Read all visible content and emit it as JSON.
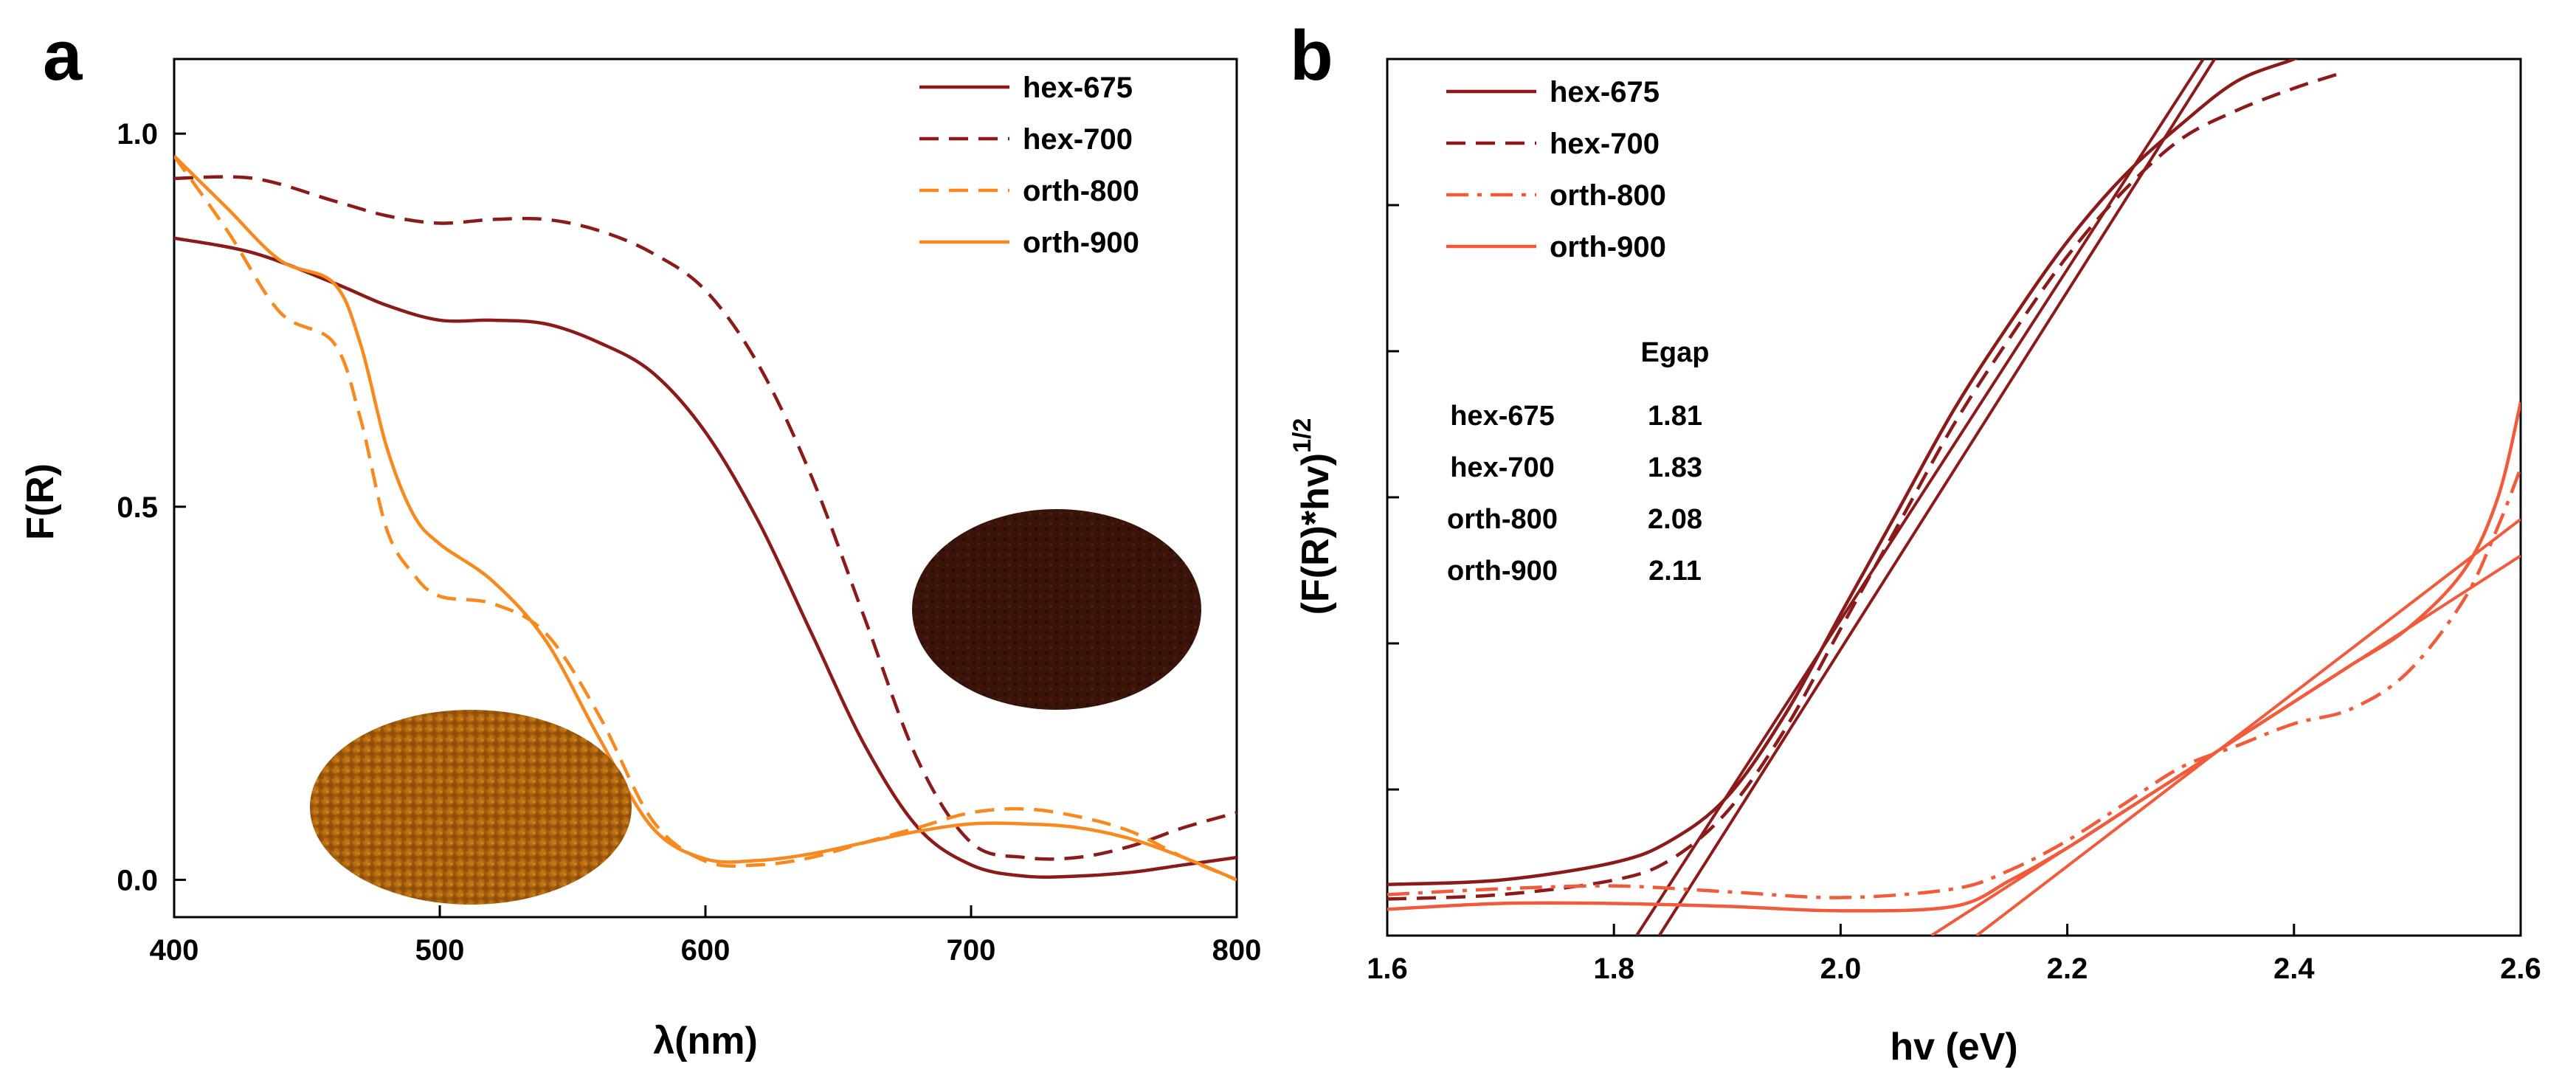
{
  "colors": {
    "hex": "#8b1a1a",
    "orth_a": "#f7891f",
    "orth_b": "#f25a3c"
  },
  "chart_data": [
    {
      "type": "line",
      "panel": "a",
      "xlabel": "λ(nm)",
      "ylabel": "F(R)",
      "xlim": [
        400,
        800
      ],
      "ylim": [
        -0.05,
        1.1
      ],
      "xticks": [
        400,
        500,
        600,
        700,
        800
      ],
      "xtick_labels": [
        "400",
        "500",
        "600",
        "700",
        "800"
      ],
      "yticks": [
        0.0,
        0.5,
        1.0
      ],
      "ytick_labels": [
        "0.0",
        "0.5",
        "1.0"
      ],
      "legend_position": "top-right",
      "series": [
        {
          "name": "hex-675",
          "style": "solid",
          "color": "#8b1a1a",
          "x": [
            400,
            430,
            460,
            480,
            500,
            520,
            540,
            560,
            580,
            600,
            620,
            640,
            660,
            680,
            700,
            720,
            740,
            760,
            780,
            800
          ],
          "y": [
            0.86,
            0.84,
            0.8,
            0.77,
            0.75,
            0.75,
            0.745,
            0.72,
            0.68,
            0.6,
            0.48,
            0.33,
            0.18,
            0.07,
            0.02,
            0.005,
            0.005,
            0.01,
            0.02,
            0.03
          ]
        },
        {
          "name": "hex-700",
          "style": "dashed",
          "color": "#8b1a1a",
          "x": [
            400,
            430,
            460,
            480,
            500,
            520,
            540,
            560,
            580,
            600,
            620,
            640,
            660,
            680,
            700,
            720,
            740,
            760,
            780,
            800
          ],
          "y": [
            0.94,
            0.94,
            0.91,
            0.89,
            0.88,
            0.885,
            0.885,
            0.87,
            0.84,
            0.79,
            0.69,
            0.54,
            0.35,
            0.16,
            0.05,
            0.03,
            0.03,
            0.045,
            0.07,
            0.09
          ]
        },
        {
          "name": "orth-800",
          "style": "dashed",
          "color": "#f7891f",
          "x": [
            400,
            420,
            440,
            460,
            470,
            480,
            490,
            500,
            520,
            540,
            560,
            580,
            600,
            620,
            640,
            660,
            680,
            700,
            720,
            740,
            760,
            780,
            800
          ],
          "y": [
            0.97,
            0.87,
            0.76,
            0.72,
            0.62,
            0.47,
            0.41,
            0.38,
            0.37,
            0.33,
            0.22,
            0.08,
            0.025,
            0.02,
            0.03,
            0.05,
            0.07,
            0.09,
            0.095,
            0.085,
            0.065,
            0.03,
            0.0
          ]
        },
        {
          "name": "orth-900",
          "style": "solid",
          "color": "#f7891f",
          "x": [
            400,
            420,
            440,
            460,
            470,
            480,
            490,
            500,
            520,
            540,
            560,
            580,
            600,
            620,
            640,
            660,
            680,
            700,
            720,
            740,
            760,
            780,
            800
          ],
          "y": [
            0.97,
            0.9,
            0.83,
            0.8,
            0.72,
            0.58,
            0.49,
            0.45,
            0.4,
            0.32,
            0.19,
            0.07,
            0.028,
            0.026,
            0.035,
            0.05,
            0.065,
            0.075,
            0.075,
            0.07,
            0.055,
            0.03,
            0.0
          ]
        }
      ]
    },
    {
      "type": "line",
      "panel": "b",
      "xlabel": "hv (eV)",
      "ylabel": "(F(R)*hv)",
      "ylabel_superscript": "1/2",
      "xlim": [
        1.6,
        2.6
      ],
      "ylim": [
        0,
        6
      ],
      "xticks": [
        1.6,
        1.8,
        2.0,
        2.2,
        2.4,
        2.6
      ],
      "xtick_labels": [
        "1.6",
        "1.8",
        "2.0",
        "2.2",
        "2.4",
        "2.6"
      ],
      "yticks": [
        1,
        2,
        3,
        4,
        5
      ],
      "legend_position": "top-left",
      "series": [
        {
          "name": "hex-675",
          "style": "solid",
          "color": "#8b1a1a",
          "x": [
            1.6,
            1.7,
            1.8,
            1.85,
            1.9,
            1.95,
            2.0,
            2.05,
            2.1,
            2.15,
            2.2,
            2.25,
            2.3,
            2.35,
            2.4,
            2.41
          ],
          "y": [
            0.35,
            0.38,
            0.5,
            0.65,
            0.95,
            1.5,
            2.2,
            2.9,
            3.6,
            4.2,
            4.75,
            5.2,
            5.55,
            5.85,
            6.0,
            6.05
          ]
        },
        {
          "name": "hex-700",
          "style": "dashed",
          "color": "#8b1a1a",
          "x": [
            1.6,
            1.7,
            1.8,
            1.85,
            1.9,
            1.95,
            2.0,
            2.05,
            2.1,
            2.15,
            2.2,
            2.25,
            2.3,
            2.35,
            2.4,
            2.44
          ],
          "y": [
            0.25,
            0.28,
            0.38,
            0.52,
            0.85,
            1.4,
            2.1,
            2.8,
            3.5,
            4.1,
            4.65,
            5.1,
            5.45,
            5.65,
            5.8,
            5.9
          ]
        },
        {
          "name": "orth-800",
          "style": "dashdot",
          "color": "#f25a3c",
          "x": [
            1.6,
            1.7,
            1.8,
            1.9,
            2.0,
            2.1,
            2.15,
            2.2,
            2.25,
            2.3,
            2.35,
            2.4,
            2.45,
            2.5,
            2.55,
            2.58,
            2.6
          ],
          "y": [
            0.28,
            0.32,
            0.34,
            0.3,
            0.26,
            0.32,
            0.45,
            0.65,
            0.9,
            1.15,
            1.3,
            1.45,
            1.55,
            1.8,
            2.3,
            2.8,
            3.2
          ]
        },
        {
          "name": "orth-900",
          "style": "solid",
          "color": "#f25a3c",
          "x": [
            1.6,
            1.7,
            1.8,
            1.9,
            2.0,
            2.1,
            2.15,
            2.2,
            2.25,
            2.3,
            2.35,
            2.4,
            2.45,
            2.5,
            2.55,
            2.58,
            2.6
          ],
          "y": [
            0.18,
            0.22,
            0.22,
            0.2,
            0.17,
            0.2,
            0.38,
            0.6,
            0.85,
            1.1,
            1.35,
            1.6,
            1.85,
            2.1,
            2.5,
            3.0,
            3.65
          ]
        }
      ],
      "fit_lines": [
        {
          "name": "hex-675 fit",
          "color": "#8b1a1a",
          "x": [
            1.82,
            2.32
          ],
          "y": [
            0.0,
            6.0
          ]
        },
        {
          "name": "hex-700 fit",
          "color": "#8b1a1a",
          "x": [
            1.84,
            2.33
          ],
          "y": [
            0.0,
            6.0
          ]
        },
        {
          "name": "orth-800 fit",
          "color": "#f25a3c",
          "x": [
            2.08,
            2.6
          ],
          "y": [
            0.0,
            2.6
          ]
        },
        {
          "name": "orth-900 fit",
          "color": "#f25a3c",
          "x": [
            2.12,
            2.6
          ],
          "y": [
            0.0,
            2.85
          ]
        }
      ],
      "egap_table": {
        "header": "Egap",
        "rows": [
          {
            "sample": "hex-675",
            "value": "1.81"
          },
          {
            "sample": "hex-700",
            "value": "1.83"
          },
          {
            "sample": "orth-800",
            "value": "2.08"
          },
          {
            "sample": "orth-900",
            "value": "2.11"
          }
        ]
      }
    }
  ]
}
